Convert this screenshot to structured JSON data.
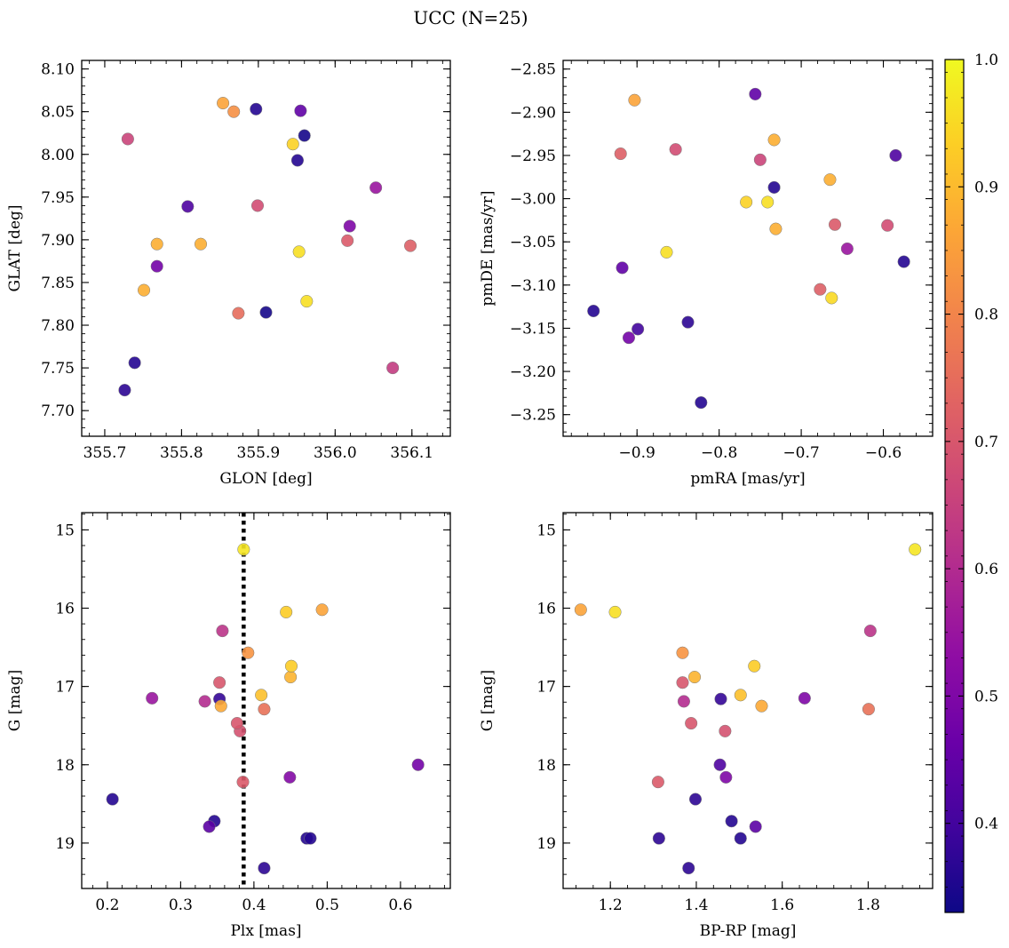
{
  "title": "UCC (N=25)",
  "colorbar": {
    "range": [
      0.33,
      1.0
    ],
    "ticks": [
      0.4,
      0.5,
      0.6,
      0.7,
      0.8,
      0.9,
      1.0
    ],
    "tick_labels": [
      "0.4",
      "0.5",
      "0.6",
      "0.7",
      "0.8",
      "0.9",
      "1.0"
    ],
    "colormap": "plasma"
  },
  "chart_data": [
    {
      "type": "scatter",
      "xlabel": "GLON [deg]",
      "ylabel": "GLAT [deg]",
      "xlim": [
        355.67,
        356.15
      ],
      "ylim": [
        7.67,
        8.11
      ],
      "y_inverted": false,
      "xticks": [
        355.7,
        355.8,
        355.9,
        356.0,
        356.1
      ],
      "xtick_labels": [
        "355.7",
        "355.8",
        "355.9",
        "356.0",
        "356.1"
      ],
      "yticks": [
        7.7,
        7.75,
        7.8,
        7.85,
        7.9,
        7.95,
        8.0,
        8.05,
        8.1
      ],
      "ytick_labels": [
        "7.70",
        "7.75",
        "7.80",
        "7.85",
        "7.90",
        "7.95",
        "8.00",
        "8.05",
        "8.10"
      ],
      "points": [
        {
          "x": 355.854,
          "y": 8.06,
          "c": 0.86
        },
        {
          "x": 355.868,
          "y": 8.05,
          "c": 0.82
        },
        {
          "x": 355.897,
          "y": 8.053,
          "c": 0.36
        },
        {
          "x": 355.955,
          "y": 8.051,
          "c": 0.45
        },
        {
          "x": 355.96,
          "y": 8.022,
          "c": 0.34
        },
        {
          "x": 355.945,
          "y": 8.012,
          "c": 0.94
        },
        {
          "x": 355.73,
          "y": 8.018,
          "c": 0.66
        },
        {
          "x": 355.951,
          "y": 7.993,
          "c": 0.36
        },
        {
          "x": 356.053,
          "y": 7.961,
          "c": 0.55
        },
        {
          "x": 355.808,
          "y": 7.939,
          "c": 0.42
        },
        {
          "x": 355.899,
          "y": 7.94,
          "c": 0.68
        },
        {
          "x": 356.019,
          "y": 7.916,
          "c": 0.5
        },
        {
          "x": 356.016,
          "y": 7.899,
          "c": 0.71
        },
        {
          "x": 356.098,
          "y": 7.893,
          "c": 0.72
        },
        {
          "x": 355.768,
          "y": 7.895,
          "c": 0.88
        },
        {
          "x": 355.825,
          "y": 7.895,
          "c": 0.88
        },
        {
          "x": 355.953,
          "y": 7.886,
          "c": 0.96
        },
        {
          "x": 355.768,
          "y": 7.869,
          "c": 0.48
        },
        {
          "x": 355.751,
          "y": 7.841,
          "c": 0.88
        },
        {
          "x": 355.963,
          "y": 7.828,
          "c": 0.96
        },
        {
          "x": 355.874,
          "y": 7.814,
          "c": 0.75
        },
        {
          "x": 355.91,
          "y": 7.815,
          "c": 0.34
        },
        {
          "x": 355.739,
          "y": 7.756,
          "c": 0.36
        },
        {
          "x": 356.075,
          "y": 7.75,
          "c": 0.64
        },
        {
          "x": 355.726,
          "y": 7.724,
          "c": 0.37
        }
      ]
    },
    {
      "type": "scatter",
      "xlabel": "pmRA [mas/yr]",
      "ylabel": "pmDE [mas/yr]",
      "xlim": [
        -0.99,
        -0.54
      ],
      "ylim": [
        -3.275,
        -2.84
      ],
      "y_inverted": false,
      "xticks": [
        -0.9,
        -0.8,
        -0.7,
        -0.6
      ],
      "xtick_labels": [
        "−0.9",
        "−0.8",
        "−0.7",
        "−0.6"
      ],
      "yticks": [
        -3.25,
        -3.2,
        -3.15,
        -3.1,
        -3.05,
        -3.0,
        -2.95,
        -2.9,
        -2.85
      ],
      "ytick_labels": [
        "−3.25",
        "−3.20",
        "−3.15",
        "−3.10",
        "−3.05",
        "−3.00",
        "−2.95",
        "−2.90",
        "−2.85"
      ],
      "points": [
        {
          "x": -0.903,
          "y": -2.886,
          "c": 0.86
        },
        {
          "x": -0.756,
          "y": -2.879,
          "c": 0.45
        },
        {
          "x": -0.733,
          "y": -2.932,
          "c": 0.88
        },
        {
          "x": -0.853,
          "y": -2.943,
          "c": 0.68
        },
        {
          "x": -0.92,
          "y": -2.948,
          "c": 0.72
        },
        {
          "x": -0.75,
          "y": -2.955,
          "c": 0.66
        },
        {
          "x": -0.585,
          "y": -2.95,
          "c": 0.42
        },
        {
          "x": -0.665,
          "y": -2.978,
          "c": 0.88
        },
        {
          "x": -0.733,
          "y": -2.987,
          "c": 0.36
        },
        {
          "x": -0.767,
          "y": -3.004,
          "c": 0.94
        },
        {
          "x": -0.741,
          "y": -3.004,
          "c": 0.96
        },
        {
          "x": -0.659,
          "y": -3.03,
          "c": 0.71
        },
        {
          "x": -0.595,
          "y": -3.031,
          "c": 0.68
        },
        {
          "x": -0.731,
          "y": -3.035,
          "c": 0.88
        },
        {
          "x": -0.644,
          "y": -3.058,
          "c": 0.55
        },
        {
          "x": -0.864,
          "y": -3.062,
          "c": 0.96
        },
        {
          "x": -0.575,
          "y": -3.073,
          "c": 0.36
        },
        {
          "x": -0.918,
          "y": -3.08,
          "c": 0.45
        },
        {
          "x": -0.677,
          "y": -3.105,
          "c": 0.72
        },
        {
          "x": -0.663,
          "y": -3.115,
          "c": 0.95
        },
        {
          "x": -0.953,
          "y": -3.13,
          "c": 0.36
        },
        {
          "x": -0.838,
          "y": -3.143,
          "c": 0.37
        },
        {
          "x": -0.899,
          "y": -3.151,
          "c": 0.4
        },
        {
          "x": -0.91,
          "y": -3.161,
          "c": 0.48
        },
        {
          "x": -0.822,
          "y": -3.236,
          "c": 0.36
        }
      ]
    },
    {
      "type": "scatter",
      "xlabel": "Plx [mas]",
      "ylabel": "G [mag]",
      "xlim": [
        0.165,
        0.668
      ],
      "ylim": [
        19.58,
        14.78
      ],
      "y_inverted": true,
      "xticks": [
        0.2,
        0.3,
        0.4,
        0.5,
        0.6
      ],
      "xtick_labels": [
        "0.2",
        "0.3",
        "0.4",
        "0.5",
        "0.6"
      ],
      "yticks": [
        15,
        16,
        17,
        18,
        19
      ],
      "ytick_labels": [
        "15",
        "16",
        "17",
        "18",
        "19"
      ],
      "vline": {
        "x": 0.386,
        "style": "dotted"
      },
      "points": [
        {
          "x": 0.386,
          "y": 15.25,
          "c": 0.97
        },
        {
          "x": 0.493,
          "y": 16.02,
          "c": 0.86
        },
        {
          "x": 0.444,
          "y": 16.05,
          "c": 0.93
        },
        {
          "x": 0.357,
          "y": 16.29,
          "c": 0.62
        },
        {
          "x": 0.392,
          "y": 16.57,
          "c": 0.83
        },
        {
          "x": 0.451,
          "y": 16.74,
          "c": 0.93
        },
        {
          "x": 0.45,
          "y": 16.88,
          "c": 0.89
        },
        {
          "x": 0.353,
          "y": 16.95,
          "c": 0.7
        },
        {
          "x": 0.41,
          "y": 17.11,
          "c": 0.91
        },
        {
          "x": 0.261,
          "y": 17.15,
          "c": 0.55
        },
        {
          "x": 0.353,
          "y": 17.16,
          "c": 0.38
        },
        {
          "x": 0.333,
          "y": 17.19,
          "c": 0.6
        },
        {
          "x": 0.355,
          "y": 17.25,
          "c": 0.87
        },
        {
          "x": 0.414,
          "y": 17.29,
          "c": 0.76
        },
        {
          "x": 0.377,
          "y": 17.47,
          "c": 0.7
        },
        {
          "x": 0.381,
          "y": 17.57,
          "c": 0.69
        },
        {
          "x": 0.624,
          "y": 18.0,
          "c": 0.48
        },
        {
          "x": 0.449,
          "y": 18.16,
          "c": 0.51
        },
        {
          "x": 0.385,
          "y": 18.22,
          "c": 0.71
        },
        {
          "x": 0.207,
          "y": 18.44,
          "c": 0.36
        },
        {
          "x": 0.346,
          "y": 18.72,
          "c": 0.36
        },
        {
          "x": 0.339,
          "y": 18.79,
          "c": 0.44
        },
        {
          "x": 0.472,
          "y": 18.94,
          "c": 0.36
        },
        {
          "x": 0.477,
          "y": 18.94,
          "c": 0.36
        },
        {
          "x": 0.414,
          "y": 19.32,
          "c": 0.37
        }
      ]
    },
    {
      "type": "scatter",
      "xlabel": "BP-RP [mag]",
      "ylabel": "G [mag]",
      "xlim": [
        1.09,
        1.95
      ],
      "ylim": [
        19.58,
        14.78
      ],
      "y_inverted": true,
      "xticks": [
        1.2,
        1.4,
        1.6,
        1.8
      ],
      "xtick_labels": [
        "1.2",
        "1.4",
        "1.6",
        "1.8"
      ],
      "yticks": [
        15,
        16,
        17,
        18,
        19
      ],
      "ytick_labels": [
        "15",
        "16",
        "17",
        "18",
        "19"
      ],
      "points": [
        {
          "x": 1.909,
          "y": 15.25,
          "c": 0.97
        },
        {
          "x": 1.131,
          "y": 16.02,
          "c": 0.86
        },
        {
          "x": 1.211,
          "y": 16.05,
          "c": 0.96
        },
        {
          "x": 1.805,
          "y": 16.29,
          "c": 0.62
        },
        {
          "x": 1.368,
          "y": 16.57,
          "c": 0.83
        },
        {
          "x": 1.535,
          "y": 16.74,
          "c": 0.93
        },
        {
          "x": 1.396,
          "y": 16.88,
          "c": 0.89
        },
        {
          "x": 1.368,
          "y": 16.95,
          "c": 0.7
        },
        {
          "x": 1.503,
          "y": 17.11,
          "c": 0.91
        },
        {
          "x": 1.652,
          "y": 17.15,
          "c": 0.5
        },
        {
          "x": 1.457,
          "y": 17.16,
          "c": 0.38
        },
        {
          "x": 1.371,
          "y": 17.19,
          "c": 0.6
        },
        {
          "x": 1.552,
          "y": 17.25,
          "c": 0.87
        },
        {
          "x": 1.801,
          "y": 17.29,
          "c": 0.76
        },
        {
          "x": 1.388,
          "y": 17.47,
          "c": 0.7
        },
        {
          "x": 1.467,
          "y": 17.57,
          "c": 0.69
        },
        {
          "x": 1.455,
          "y": 18.0,
          "c": 0.42
        },
        {
          "x": 1.469,
          "y": 18.16,
          "c": 0.5
        },
        {
          "x": 1.311,
          "y": 18.22,
          "c": 0.71
        },
        {
          "x": 1.398,
          "y": 18.44,
          "c": 0.37
        },
        {
          "x": 1.482,
          "y": 18.72,
          "c": 0.36
        },
        {
          "x": 1.538,
          "y": 18.79,
          "c": 0.44
        },
        {
          "x": 1.313,
          "y": 18.94,
          "c": 0.37
        },
        {
          "x": 1.503,
          "y": 18.94,
          "c": 0.36
        },
        {
          "x": 1.382,
          "y": 19.32,
          "c": 0.37
        }
      ]
    }
  ]
}
